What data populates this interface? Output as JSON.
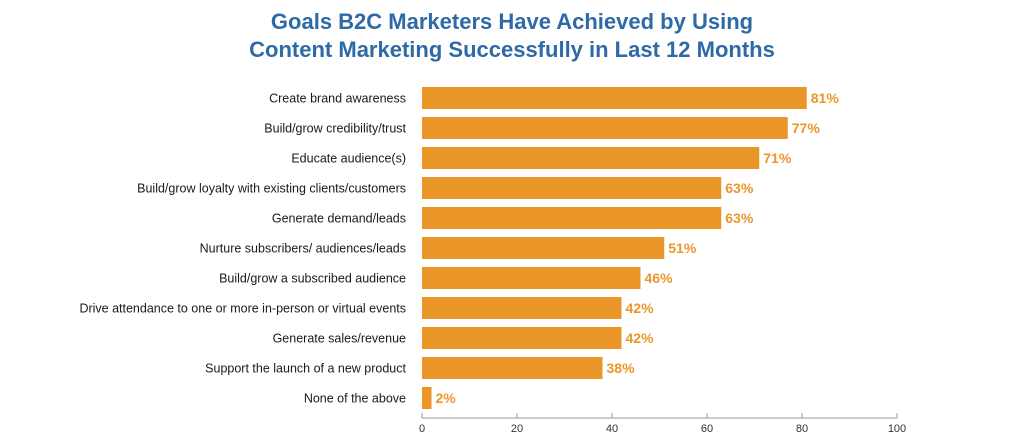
{
  "chart_data": {
    "type": "bar",
    "orientation": "horizontal",
    "title": "Goals B2C Marketers Have Achieved by Using Content Marketing Successfully in Last 12 Months",
    "title_lines": [
      "Goals B2C Marketers Have Achieved by Using",
      "Content Marketing Successfully in Last 12 Months"
    ],
    "categories": [
      "Create brand awareness",
      "Build/grow credibility/trust",
      "Educate audience(s)",
      "Build/grow loyalty with existing clients/customers",
      "Generate demand/leads",
      "Nurture subscribers/ audiences/leads",
      "Build/grow a subscribed audience",
      "Drive attendance to one or more in-person or virtual events",
      "Generate sales/revenue",
      "Support the launch of a new product",
      "None of the above"
    ],
    "values": [
      81,
      77,
      71,
      63,
      63,
      51,
      46,
      42,
      42,
      38,
      2
    ],
    "value_labels": [
      "81%",
      "77%",
      "71%",
      "63%",
      "63%",
      "51%",
      "46%",
      "42%",
      "42%",
      "38%",
      "2%"
    ],
    "xlim": [
      0,
      100
    ],
    "xticks": [
      0,
      20,
      40,
      60,
      80,
      100
    ],
    "xlabel": "",
    "ylabel": "",
    "grid": false,
    "legend": "none",
    "colors": {
      "bar": "#eb9628",
      "value_label": "#eb9628",
      "title": "#2e6aa6",
      "axis": "#999999"
    }
  }
}
